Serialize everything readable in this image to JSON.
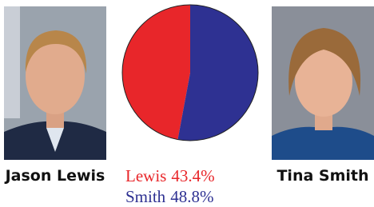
{
  "chart_data": {
    "type": "pie",
    "categories": [
      "Lewis",
      "Smith"
    ],
    "values": [
      43.4,
      48.8
    ],
    "value_labels": [
      "43.4%",
      "48.8%"
    ],
    "colors": [
      "#e8262a",
      "#2e3192"
    ]
  },
  "candidates": [
    {
      "name": "Jason Lewis"
    },
    {
      "name": "Tina Smith"
    }
  ]
}
